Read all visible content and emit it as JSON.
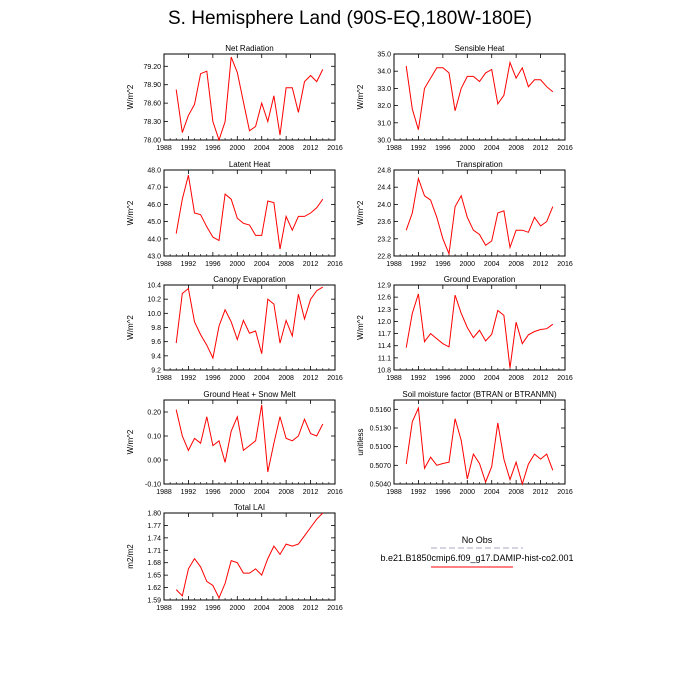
{
  "figure": {
    "title": "S. Hemisphere Land (90S-EQ,180W-180E)"
  },
  "legend": {
    "entries": [
      {
        "label": "No Obs",
        "color": "#a9a9c4",
        "style": "dashed"
      },
      {
        "label": "b.e21.B1850cmip6.f09_g17.DAMIP-hist-co2.001",
        "color": "#ff0000",
        "style": "solid"
      }
    ]
  },
  "chart_data": [
    {
      "type": "line",
      "title": "Net Radiation",
      "xlabel": "",
      "ylabel": "W/m^2",
      "xlim": [
        1988,
        2016
      ],
      "ylim": [
        78.0,
        79.4
      ],
      "xticks": [
        1988,
        1992,
        1996,
        2000,
        2004,
        2008,
        2012,
        2016
      ],
      "yticks": [
        78.0,
        78.3,
        78.6,
        78.9,
        79.2
      ],
      "ytick_labels": [
        "78.00",
        "78.30",
        "78.60",
        "78.90",
        "79.20"
      ],
      "x": [
        1990,
        1991,
        1992,
        1993,
        1994,
        1995,
        1996,
        1997,
        1998,
        1999,
        2000,
        2001,
        2002,
        2003,
        2004,
        2005,
        2006,
        2007,
        2008,
        2009,
        2010,
        2011,
        2012,
        2013,
        2014
      ],
      "series": [
        {
          "name": "b.e21.B1850cmip6.f09_g17.DAMIP-hist-co2.001",
          "color": "#ff0000",
          "values": [
            78.82,
            78.12,
            78.4,
            78.58,
            79.08,
            79.12,
            78.3,
            78.0,
            78.3,
            79.35,
            79.1,
            78.62,
            78.15,
            78.22,
            78.6,
            78.3,
            78.72,
            78.08,
            78.85,
            78.85,
            78.45,
            78.95,
            79.05,
            78.95,
            79.15
          ]
        }
      ]
    },
    {
      "type": "line",
      "title": "Sensible Heat",
      "xlabel": "",
      "ylabel": "W/m^2",
      "xlim": [
        1988,
        2016
      ],
      "ylim": [
        30.0,
        35.0
      ],
      "xticks": [
        1988,
        1992,
        1996,
        2000,
        2004,
        2008,
        2012,
        2016
      ],
      "yticks": [
        30,
        31,
        32,
        33,
        34,
        35
      ],
      "ytick_labels": [
        "30.0",
        "31.0",
        "32.0",
        "33.0",
        "34.0",
        "35.0"
      ],
      "x": [
        1990,
        1991,
        1992,
        1993,
        1994,
        1995,
        1996,
        1997,
        1998,
        1999,
        2000,
        2001,
        2002,
        2003,
        2004,
        2005,
        2006,
        2007,
        2008,
        2009,
        2010,
        2011,
        2012,
        2013,
        2014
      ],
      "series": [
        {
          "name": "b.e21.B1850cmip6.f09_g17.DAMIP-hist-co2.001",
          "color": "#ff0000",
          "values": [
            34.3,
            31.8,
            30.6,
            33.0,
            33.6,
            34.2,
            34.2,
            33.9,
            31.7,
            33.0,
            33.7,
            33.7,
            33.4,
            33.9,
            34.1,
            32.1,
            32.6,
            34.5,
            33.6,
            34.2,
            33.1,
            33.5,
            33.5,
            33.1,
            32.8
          ]
        }
      ]
    },
    {
      "type": "line",
      "title": "Latent Heat",
      "xlabel": "",
      "ylabel": "W/m^2",
      "xlim": [
        1988,
        2016
      ],
      "ylim": [
        43.0,
        48.0
      ],
      "xticks": [
        1988,
        1992,
        1996,
        2000,
        2004,
        2008,
        2012,
        2016
      ],
      "yticks": [
        43,
        44,
        45,
        46,
        47,
        48
      ],
      "ytick_labels": [
        "43.0",
        "44.0",
        "45.0",
        "46.0",
        "47.0",
        "48.0"
      ],
      "x": [
        1990,
        1991,
        1992,
        1993,
        1994,
        1995,
        1996,
        1997,
        1998,
        1999,
        2000,
        2001,
        2002,
        2003,
        2004,
        2005,
        2006,
        2007,
        2008,
        2009,
        2010,
        2011,
        2012,
        2013,
        2014
      ],
      "series": [
        {
          "name": "b.e21.B1850cmip6.f09_g17.DAMIP-hist-co2.001",
          "color": "#ff0000",
          "values": [
            44.3,
            46.3,
            47.7,
            45.5,
            45.4,
            44.7,
            44.1,
            43.9,
            46.6,
            46.3,
            45.2,
            44.9,
            44.8,
            44.2,
            44.2,
            46.2,
            46.1,
            43.4,
            45.3,
            44.5,
            45.3,
            45.3,
            45.5,
            45.8,
            46.3
          ]
        }
      ]
    },
    {
      "type": "line",
      "title": "Transpiration",
      "xlabel": "",
      "ylabel": "W/m^2",
      "xlim": [
        1988,
        2016
      ],
      "ylim": [
        22.8,
        24.8
      ],
      "xticks": [
        1988,
        1992,
        1996,
        2000,
        2004,
        2008,
        2012,
        2016
      ],
      "yticks": [
        22.8,
        23.2,
        23.6,
        24.0,
        24.4,
        24.8
      ],
      "ytick_labels": [
        "22.8",
        "23.2",
        "23.6",
        "24.0",
        "24.4",
        "24.8"
      ],
      "x": [
        1990,
        1991,
        1992,
        1993,
        1994,
        1995,
        1996,
        1997,
        1998,
        1999,
        2000,
        2001,
        2002,
        2003,
        2004,
        2005,
        2006,
        2007,
        2008,
        2009,
        2010,
        2011,
        2012,
        2013,
        2014
      ],
      "series": [
        {
          "name": "b.e21.B1850cmip6.f09_g17.DAMIP-hist-co2.001",
          "color": "#ff0000",
          "values": [
            23.4,
            23.8,
            24.6,
            24.2,
            24.1,
            23.7,
            23.2,
            22.85,
            23.95,
            24.2,
            23.7,
            23.4,
            23.3,
            23.05,
            23.15,
            23.8,
            23.85,
            23.0,
            23.4,
            23.4,
            23.35,
            23.7,
            23.5,
            23.6,
            23.95
          ]
        }
      ]
    },
    {
      "type": "line",
      "title": "Canopy Evaporation",
      "xlabel": "",
      "ylabel": "W/m^2",
      "xlim": [
        1988,
        2016
      ],
      "ylim": [
        9.2,
        10.4
      ],
      "xticks": [
        1988,
        1992,
        1996,
        2000,
        2004,
        2008,
        2012,
        2016
      ],
      "yticks": [
        9.2,
        9.4,
        9.6,
        9.8,
        10.0,
        10.2,
        10.4
      ],
      "ytick_labels": [
        "9.2",
        "9.4",
        "9.6",
        "9.8",
        "10.0",
        "10.2",
        "10.4"
      ],
      "x": [
        1990,
        1991,
        1992,
        1993,
        1994,
        1995,
        1996,
        1997,
        1998,
        1999,
        2000,
        2001,
        2002,
        2003,
        2004,
        2005,
        2006,
        2007,
        2008,
        2009,
        2010,
        2011,
        2012,
        2013,
        2014
      ],
      "series": [
        {
          "name": "b.e21.B1850cmip6.f09_g17.DAMIP-hist-co2.001",
          "color": "#ff0000",
          "values": [
            9.58,
            10.28,
            10.35,
            9.88,
            9.7,
            9.55,
            9.37,
            9.82,
            10.05,
            9.88,
            9.63,
            9.9,
            9.72,
            9.75,
            9.43,
            10.2,
            10.13,
            9.58,
            9.9,
            9.68,
            10.27,
            9.92,
            10.2,
            10.32,
            10.37
          ]
        }
      ]
    },
    {
      "type": "line",
      "title": "Ground Evaporation",
      "xlabel": "",
      "ylabel": "W/m^2",
      "xlim": [
        1988,
        2016
      ],
      "ylim": [
        10.8,
        12.9
      ],
      "xticks": [
        1988,
        1992,
        1996,
        2000,
        2004,
        2008,
        2012,
        2016
      ],
      "yticks": [
        10.8,
        11.1,
        11.4,
        11.7,
        12.0,
        12.3,
        12.6,
        12.9
      ],
      "ytick_labels": [
        "10.8",
        "11.1",
        "11.4",
        "11.7",
        "12.0",
        "12.3",
        "12.6",
        "12.9"
      ],
      "x": [
        1990,
        1991,
        1992,
        1993,
        1994,
        1995,
        1996,
        1997,
        1998,
        1999,
        2000,
        2001,
        2002,
        2003,
        2004,
        2005,
        2006,
        2007,
        2008,
        2009,
        2010,
        2011,
        2012,
        2013,
        2014
      ],
      "series": [
        {
          "name": "b.e21.B1850cmip6.f09_g17.DAMIP-hist-co2.001",
          "color": "#ff0000",
          "values": [
            11.35,
            12.2,
            12.68,
            11.5,
            11.7,
            11.57,
            11.45,
            11.37,
            12.65,
            12.2,
            11.85,
            11.6,
            11.78,
            11.52,
            11.68,
            12.27,
            12.15,
            10.85,
            11.98,
            11.45,
            11.67,
            11.75,
            11.8,
            11.82,
            11.93
          ]
        }
      ]
    },
    {
      "type": "line",
      "title": "Ground Heat + Snow Melt",
      "xlabel": "",
      "ylabel": "W/m^2",
      "xlim": [
        1988,
        2016
      ],
      "ylim": [
        -0.1,
        0.25
      ],
      "xticks": [
        1988,
        1992,
        1996,
        2000,
        2004,
        2008,
        2012,
        2016
      ],
      "yticks": [
        -0.1,
        0.0,
        0.1,
        0.2
      ],
      "ytick_labels": [
        "-0.10",
        "0.00",
        "0.10",
        "0.20"
      ],
      "x": [
        1990,
        1991,
        1992,
        1993,
        1994,
        1995,
        1996,
        1997,
        1998,
        1999,
        2000,
        2001,
        2002,
        2003,
        2004,
        2005,
        2006,
        2007,
        2008,
        2009,
        2010,
        2011,
        2012,
        2013,
        2014
      ],
      "series": [
        {
          "name": "b.e21.B1850cmip6.f09_g17.DAMIP-hist-co2.001",
          "color": "#ff0000",
          "values": [
            0.21,
            0.1,
            0.04,
            0.09,
            0.07,
            0.18,
            0.06,
            0.08,
            -0.01,
            0.12,
            0.18,
            0.04,
            0.06,
            0.08,
            0.23,
            -0.05,
            0.07,
            0.18,
            0.09,
            0.08,
            0.1,
            0.17,
            0.11,
            0.1,
            0.15
          ]
        }
      ]
    },
    {
      "type": "line",
      "title": "Soil moisture factor (BTRAN or BTRANMN)",
      "xlabel": "",
      "ylabel": "unitless",
      "xlim": [
        1988,
        2016
      ],
      "ylim": [
        0.504,
        0.5175
      ],
      "xticks": [
        1988,
        1992,
        1996,
        2000,
        2004,
        2008,
        2012,
        2016
      ],
      "yticks": [
        0.504,
        0.507,
        0.51,
        0.513,
        0.516
      ],
      "ytick_labels": [
        "0.5040",
        "0.5070",
        "0.5100",
        "0.5130",
        "0.5160"
      ],
      "x": [
        1990,
        1991,
        1992,
        1993,
        1994,
        1995,
        1996,
        1997,
        1998,
        1999,
        2000,
        2001,
        2002,
        2003,
        2004,
        2005,
        2006,
        2007,
        2008,
        2009,
        2010,
        2011,
        2012,
        2013,
        2014
      ],
      "series": [
        {
          "name": "b.e21.B1850cmip6.f09_g17.DAMIP-hist-co2.001",
          "color": "#ff0000",
          "values": [
            0.5072,
            0.514,
            0.5162,
            0.5065,
            0.5083,
            0.507,
            0.5073,
            0.5075,
            0.5145,
            0.511,
            0.5048,
            0.5088,
            0.5073,
            0.5043,
            0.5068,
            0.5138,
            0.508,
            0.5047,
            0.5075,
            0.504,
            0.5072,
            0.5088,
            0.508,
            0.5088,
            0.5062
          ]
        }
      ]
    },
    {
      "type": "line",
      "title": "Total LAI",
      "xlabel": "",
      "ylabel": "m2/m2",
      "xlim": [
        1988,
        2016
      ],
      "ylim": [
        1.59,
        1.8
      ],
      "xticks": [
        1988,
        1992,
        1996,
        2000,
        2004,
        2008,
        2012,
        2016
      ],
      "yticks": [
        1.59,
        1.62,
        1.65,
        1.68,
        1.71,
        1.74,
        1.77,
        1.8
      ],
      "ytick_labels": [
        "1.59",
        "1.62",
        "1.65",
        "1.68",
        "1.71",
        "1.74",
        "1.77",
        "1.80"
      ],
      "x": [
        1990,
        1991,
        1992,
        1993,
        1994,
        1995,
        1996,
        1997,
        1998,
        1999,
        2000,
        2001,
        2002,
        2003,
        2004,
        2005,
        2006,
        2007,
        2008,
        2009,
        2010,
        2011,
        2012,
        2013,
        2014
      ],
      "series": [
        {
          "name": "b.e21.B1850cmip6.f09_g17.DAMIP-hist-co2.001",
          "color": "#ff0000",
          "values": [
            1.615,
            1.6,
            1.665,
            1.69,
            1.67,
            1.635,
            1.625,
            1.595,
            1.63,
            1.685,
            1.68,
            1.655,
            1.655,
            1.665,
            1.65,
            1.69,
            1.72,
            1.7,
            1.725,
            1.72,
            1.725,
            1.745,
            1.765,
            1.785,
            1.8
          ]
        }
      ]
    }
  ]
}
